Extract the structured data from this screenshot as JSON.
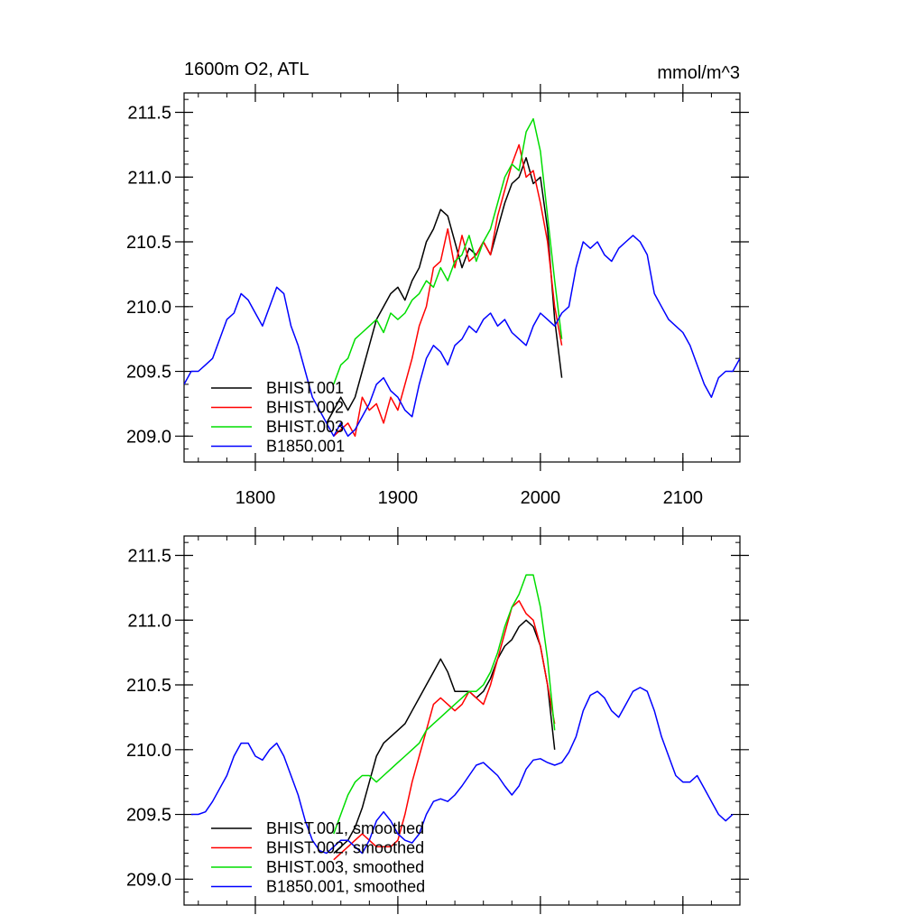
{
  "chart_data": [
    {
      "type": "line",
      "title": "1600m O2, ATL",
      "units": "mmol/m^3",
      "xlim": [
        1750,
        2140
      ],
      "ylim": [
        208.8,
        211.65
      ],
      "xticks": [
        1800,
        1900,
        2000,
        2100
      ],
      "xtick_labels": [
        "1800",
        "1900",
        "2000",
        "2100"
      ],
      "yticks": [
        209.0,
        209.5,
        210.0,
        210.5,
        211.0,
        211.5
      ],
      "ytick_labels": [
        "209.0",
        "209.5",
        "210.0",
        "210.5",
        "211.0",
        "211.5"
      ],
      "legend": "lower-left",
      "grid": false,
      "series": [
        {
          "name": "BHIST.001",
          "color": "#000000",
          "x": [
            1850,
            1855,
            1860,
            1865,
            1870,
            1875,
            1880,
            1885,
            1890,
            1895,
            1900,
            1905,
            1910,
            1915,
            1920,
            1925,
            1930,
            1935,
            1940,
            1945,
            1950,
            1955,
            1960,
            1965,
            1970,
            1975,
            1980,
            1985,
            1990,
            1995,
            2000,
            2005,
            2010,
            2015
          ],
          "y": [
            209.1,
            209.2,
            209.3,
            209.2,
            209.3,
            209.5,
            209.7,
            209.9,
            210.0,
            210.1,
            210.15,
            210.05,
            210.2,
            210.3,
            210.5,
            210.6,
            210.75,
            210.7,
            210.5,
            210.3,
            210.45,
            210.4,
            210.5,
            210.4,
            210.6,
            210.8,
            210.95,
            211.0,
            211.15,
            210.95,
            211.0,
            210.6,
            209.9,
            209.45
          ]
        },
        {
          "name": "BHIST.002",
          "color": "#ff0000",
          "x": [
            1855,
            1860,
            1865,
            1870,
            1875,
            1880,
            1885,
            1890,
            1895,
            1900,
            1905,
            1910,
            1915,
            1920,
            1925,
            1930,
            1935,
            1940,
            1945,
            1950,
            1955,
            1960,
            1965,
            1970,
            1975,
            1980,
            1985,
            1990,
            1995,
            2000,
            2005,
            2010,
            2015
          ],
          "y": [
            209.0,
            209.05,
            209.1,
            209.0,
            209.3,
            209.2,
            209.25,
            209.1,
            209.3,
            209.2,
            209.4,
            209.6,
            209.85,
            210.0,
            210.3,
            210.35,
            210.6,
            210.3,
            210.55,
            210.35,
            210.4,
            210.5,
            210.4,
            210.7,
            210.9,
            211.1,
            211.25,
            211.0,
            211.05,
            210.8,
            210.5,
            210.0,
            209.7
          ]
        },
        {
          "name": "BHIST.003",
          "color": "#00dd00",
          "x": [
            1855,
            1860,
            1865,
            1870,
            1875,
            1880,
            1885,
            1890,
            1895,
            1900,
            1905,
            1910,
            1915,
            1920,
            1925,
            1930,
            1935,
            1940,
            1945,
            1950,
            1955,
            1960,
            1965,
            1970,
            1975,
            1980,
            1985,
            1990,
            1995,
            2000,
            2005,
            2010,
            2015
          ],
          "y": [
            209.4,
            209.55,
            209.6,
            209.75,
            209.8,
            209.85,
            209.9,
            209.8,
            209.95,
            209.9,
            209.95,
            210.05,
            210.1,
            210.2,
            210.15,
            210.3,
            210.2,
            210.35,
            210.4,
            210.55,
            210.35,
            210.5,
            210.6,
            210.8,
            211.0,
            211.1,
            211.05,
            211.35,
            211.45,
            211.2,
            210.7,
            210.2,
            209.75
          ]
        },
        {
          "name": "B1850.001",
          "color": "#0000ff",
          "x": [
            1750,
            1755,
            1760,
            1765,
            1770,
            1775,
            1780,
            1785,
            1790,
            1795,
            1800,
            1805,
            1810,
            1815,
            1820,
            1825,
            1830,
            1835,
            1840,
            1845,
            1850,
            1855,
            1860,
            1865,
            1870,
            1875,
            1880,
            1885,
            1890,
            1895,
            1900,
            1905,
            1910,
            1915,
            1920,
            1925,
            1930,
            1935,
            1940,
            1945,
            1950,
            1955,
            1960,
            1965,
            1970,
            1975,
            1980,
            1985,
            1990,
            1995,
            2000,
            2005,
            2010,
            2015,
            2020,
            2025,
            2030,
            2035,
            2040,
            2045,
            2050,
            2055,
            2060,
            2065,
            2070,
            2075,
            2080,
            2085,
            2090,
            2095,
            2100,
            2105,
            2110,
            2115,
            2120,
            2125,
            2130,
            2135,
            2140
          ],
          "y": [
            209.4,
            209.5,
            209.5,
            209.55,
            209.6,
            209.75,
            209.9,
            209.95,
            210.1,
            210.05,
            209.95,
            209.85,
            210.0,
            210.15,
            210.1,
            209.85,
            209.7,
            209.5,
            209.3,
            209.2,
            209.1,
            209.0,
            209.1,
            209.0,
            209.05,
            209.15,
            209.25,
            209.4,
            209.45,
            209.35,
            209.3,
            209.2,
            209.15,
            209.4,
            209.6,
            209.7,
            209.65,
            209.55,
            209.7,
            209.75,
            209.85,
            209.8,
            209.9,
            209.95,
            209.85,
            209.9,
            209.8,
            209.75,
            209.7,
            209.85,
            209.95,
            209.9,
            209.85,
            209.95,
            210.0,
            210.3,
            210.5,
            210.45,
            210.5,
            210.4,
            210.35,
            210.45,
            210.5,
            210.55,
            210.5,
            210.4,
            210.1,
            210.0,
            209.9,
            209.85,
            209.8,
            209.7,
            209.55,
            209.4,
            209.3,
            209.45,
            209.5,
            209.5,
            209.6
          ]
        }
      ]
    },
    {
      "type": "line",
      "title": "",
      "xlim": [
        1750,
        2140
      ],
      "ylim": [
        208.8,
        211.65
      ],
      "xticks": [
        1800,
        1900,
        2000,
        2100
      ],
      "xtick_labels": [],
      "yticks": [
        209.0,
        209.5,
        210.0,
        210.5,
        211.0,
        211.5
      ],
      "ytick_labels": [
        "209.0",
        "209.5",
        "210.0",
        "210.5",
        "211.0",
        "211.5"
      ],
      "legend": "lower-left",
      "grid": false,
      "series": [
        {
          "name": "BHIST.001, smoothed",
          "color": "#000000",
          "x": [
            1855,
            1860,
            1865,
            1870,
            1875,
            1880,
            1885,
            1890,
            1895,
            1900,
            1905,
            1910,
            1915,
            1920,
            1925,
            1930,
            1935,
            1940,
            1945,
            1950,
            1955,
            1960,
            1965,
            1970,
            1975,
            1980,
            1985,
            1990,
            1995,
            2000,
            2005,
            2010
          ],
          "y": [
            209.2,
            209.25,
            209.3,
            209.4,
            209.55,
            209.75,
            209.95,
            210.05,
            210.1,
            210.15,
            210.2,
            210.3,
            210.4,
            210.5,
            210.6,
            210.7,
            210.6,
            210.45,
            210.45,
            210.45,
            210.4,
            210.45,
            210.55,
            210.7,
            210.8,
            210.85,
            210.95,
            211.0,
            210.95,
            210.8,
            210.5,
            210.0
          ]
        },
        {
          "name": "BHIST.002, smoothed",
          "color": "#ff0000",
          "x": [
            1855,
            1860,
            1865,
            1870,
            1875,
            1880,
            1885,
            1890,
            1895,
            1900,
            1905,
            1910,
            1915,
            1920,
            1925,
            1930,
            1935,
            1940,
            1945,
            1950,
            1955,
            1960,
            1965,
            1970,
            1975,
            1980,
            1985,
            1990,
            1995,
            2000,
            2005,
            2010
          ],
          "y": [
            209.15,
            209.2,
            209.25,
            209.3,
            209.35,
            209.3,
            209.25,
            209.25,
            209.25,
            209.3,
            209.5,
            209.75,
            209.95,
            210.15,
            210.35,
            210.4,
            210.35,
            210.3,
            210.35,
            210.45,
            210.4,
            210.35,
            210.5,
            210.7,
            210.9,
            211.1,
            211.15,
            211.05,
            211.0,
            210.8,
            210.5,
            210.2
          ]
        },
        {
          "name": "BHIST.003, smoothed",
          "color": "#00dd00",
          "x": [
            1855,
            1860,
            1865,
            1870,
            1875,
            1880,
            1885,
            1890,
            1895,
            1900,
            1905,
            1910,
            1915,
            1920,
            1925,
            1930,
            1935,
            1940,
            1945,
            1950,
            1955,
            1960,
            1965,
            1970,
            1975,
            1980,
            1985,
            1990,
            1995,
            2000,
            2005,
            2010
          ],
          "y": [
            209.35,
            209.5,
            209.65,
            209.75,
            209.8,
            209.8,
            209.75,
            209.8,
            209.85,
            209.9,
            209.95,
            210.0,
            210.05,
            210.15,
            210.2,
            210.25,
            210.3,
            210.35,
            210.4,
            210.45,
            210.45,
            210.5,
            210.6,
            210.75,
            210.95,
            211.1,
            211.2,
            211.35,
            211.35,
            211.1,
            210.7,
            210.15
          ]
        },
        {
          "name": "B1850.001, smoothed",
          "color": "#0000ff",
          "x": [
            1755,
            1760,
            1765,
            1770,
            1775,
            1780,
            1785,
            1790,
            1795,
            1800,
            1805,
            1810,
            1815,
            1820,
            1825,
            1830,
            1835,
            1840,
            1845,
            1850,
            1855,
            1860,
            1865,
            1870,
            1875,
            1880,
            1885,
            1890,
            1895,
            1900,
            1905,
            1910,
            1915,
            1920,
            1925,
            1930,
            1935,
            1940,
            1945,
            1950,
            1955,
            1960,
            1965,
            1970,
            1975,
            1980,
            1985,
            1990,
            1995,
            2000,
            2005,
            2010,
            2015,
            2020,
            2025,
            2030,
            2035,
            2040,
            2045,
            2050,
            2055,
            2060,
            2065,
            2070,
            2075,
            2080,
            2085,
            2090,
            2095,
            2100,
            2105,
            2110,
            2115,
            2120,
            2125,
            2130,
            2135
          ],
          "y": [
            209.5,
            209.5,
            209.52,
            209.6,
            209.7,
            209.8,
            209.95,
            210.05,
            210.05,
            209.95,
            209.92,
            210.0,
            210.05,
            209.95,
            209.8,
            209.65,
            209.45,
            209.3,
            209.22,
            209.2,
            209.25,
            209.3,
            209.3,
            209.25,
            209.2,
            209.3,
            209.45,
            209.52,
            209.45,
            209.35,
            209.3,
            209.28,
            209.35,
            209.5,
            209.6,
            209.62,
            209.6,
            209.65,
            209.72,
            209.8,
            209.88,
            209.9,
            209.85,
            209.8,
            209.72,
            209.65,
            209.72,
            209.85,
            209.92,
            209.93,
            209.9,
            209.88,
            209.9,
            209.98,
            210.1,
            210.3,
            210.42,
            210.45,
            210.4,
            210.3,
            210.25,
            210.35,
            210.45,
            210.48,
            210.45,
            210.3,
            210.1,
            209.95,
            209.8,
            209.75,
            209.75,
            209.8,
            209.7,
            209.6,
            209.5,
            209.45,
            209.5
          ]
        }
      ]
    }
  ]
}
